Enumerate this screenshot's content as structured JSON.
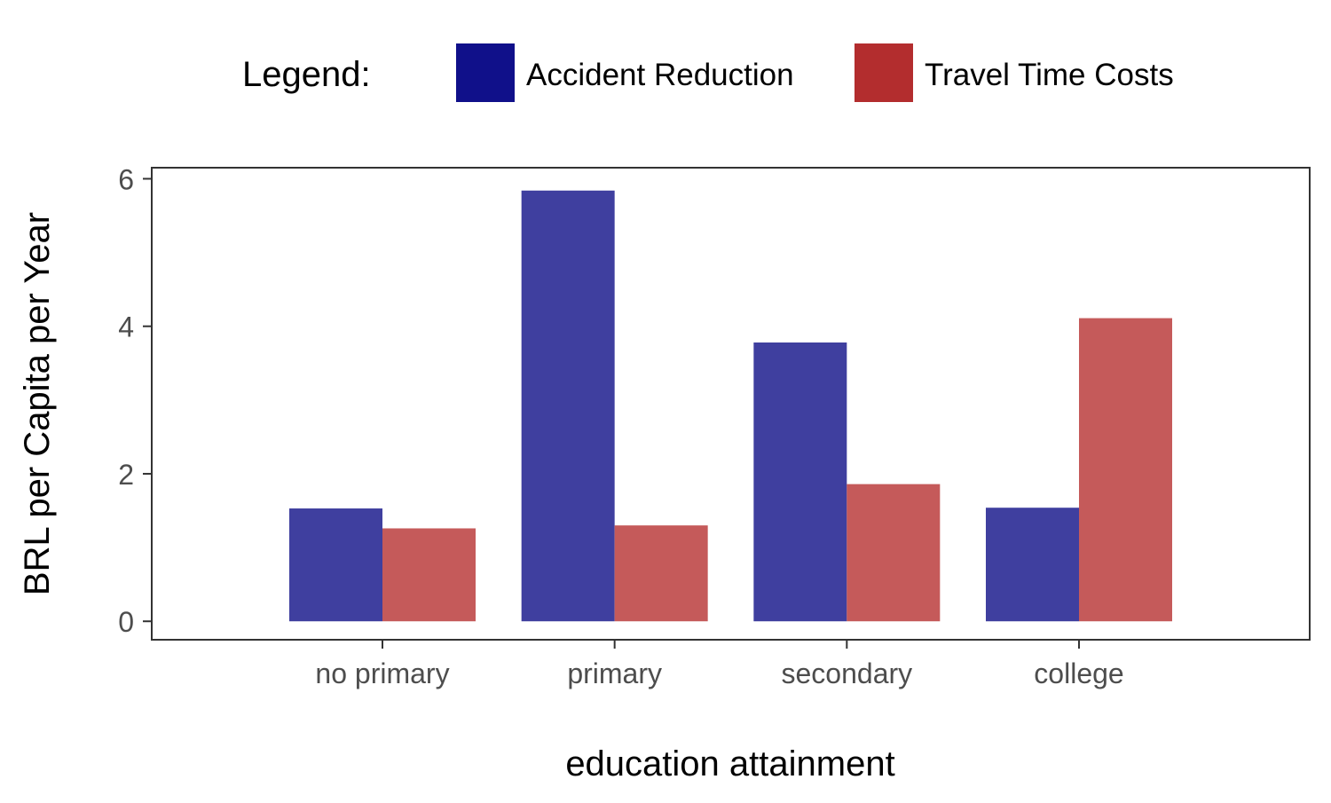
{
  "chart_data": {
    "type": "bar",
    "title": "",
    "xlabel": "education attainment",
    "ylabel": "BRL per Capita per Year",
    "categories": [
      "no primary",
      "primary",
      "secondary",
      "college"
    ],
    "series": [
      {
        "name": "Accident Reduction",
        "values": [
          1.53,
          5.84,
          3.78,
          1.54
        ],
        "color": "#3f3f9f",
        "legend_color": "#10108a"
      },
      {
        "name": "Travel Time Costs",
        "values": [
          1.26,
          1.3,
          1.86,
          4.11
        ],
        "color": "#c55a5a",
        "legend_color": "#b32d2e"
      }
    ],
    "ylim": [
      -0.25,
      6.15
    ],
    "yticks": [
      0,
      2,
      4,
      6
    ],
    "grid": false,
    "legend": {
      "title": "Legend:",
      "position": "top"
    }
  }
}
